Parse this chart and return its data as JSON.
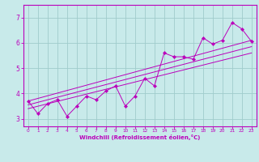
{
  "title": "",
  "xlabel": "Windchill (Refroidissement éolien,°C)",
  "bg_color": "#c8eaea",
  "grid_color": "#a0cccc",
  "line_color": "#bb00bb",
  "xlim": [
    -0.5,
    23.5
  ],
  "ylim": [
    2.7,
    7.5
  ],
  "yticks": [
    3,
    4,
    5,
    6,
    7
  ],
  "xticks": [
    0,
    1,
    2,
    3,
    4,
    5,
    6,
    7,
    8,
    9,
    10,
    11,
    12,
    13,
    14,
    15,
    16,
    17,
    18,
    19,
    20,
    21,
    22,
    23
  ],
  "main_line": {
    "x": [
      0,
      1,
      2,
      3,
      4,
      5,
      6,
      7,
      8,
      9,
      10,
      11,
      12,
      13,
      14,
      15,
      16,
      17,
      18,
      19,
      20,
      21,
      22,
      23
    ],
    "y": [
      3.7,
      3.2,
      3.6,
      3.75,
      3.1,
      3.5,
      3.9,
      3.75,
      4.1,
      4.3,
      3.5,
      3.9,
      4.6,
      4.3,
      5.6,
      5.45,
      5.45,
      5.35,
      6.2,
      5.95,
      6.1,
      6.8,
      6.55,
      6.05
    ]
  },
  "trend_lines": [
    {
      "x": [
        0,
        23
      ],
      "y": [
        3.7,
        6.1
      ]
    },
    {
      "x": [
        0,
        23
      ],
      "y": [
        3.55,
        5.85
      ]
    },
    {
      "x": [
        0,
        23
      ],
      "y": [
        3.4,
        5.6
      ]
    }
  ]
}
